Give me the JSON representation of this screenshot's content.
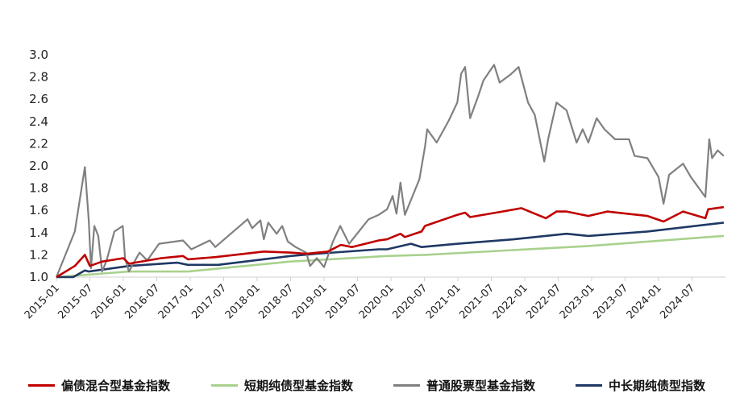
{
  "chart_data": {
    "type": "line",
    "title": "",
    "xlabel": "",
    "ylabel": "",
    "x_unit": "months since 2015-01",
    "xlim": [
      0,
      120
    ],
    "ylim": [
      1.0,
      3.0
    ],
    "grid": false,
    "legend_position": "bottom",
    "y_ticks": [
      "1.0",
      "1.2",
      "1.4",
      "1.6",
      "1.8",
      "2.0",
      "2.2",
      "2.4",
      "2.6",
      "2.8",
      "3.0"
    ],
    "x_ticks": [
      "2015-01",
      "2015-07",
      "2016-01",
      "2016-07",
      "2017-01",
      "2017-07",
      "2018-01",
      "2018-07",
      "2019-01",
      "2019-07",
      "2020-01",
      "2020-07",
      "2021-01",
      "2021-07",
      "2022-01",
      "2022-07",
      "2023-01",
      "2023-07",
      "2024-01",
      "2024-07"
    ],
    "series": [
      {
        "name": "偏债混合型基金指数",
        "color": "#C00000",
        "points": [
          [
            0,
            1.0
          ],
          [
            3.3,
            1.1
          ],
          [
            5.1,
            1.2
          ],
          [
            6,
            1.1
          ],
          [
            8.2,
            1.14
          ],
          [
            12,
            1.17
          ],
          [
            13,
            1.12
          ],
          [
            18.8,
            1.17
          ],
          [
            22.7,
            1.19
          ],
          [
            23.6,
            1.16
          ],
          [
            28.5,
            1.18
          ],
          [
            37.2,
            1.23
          ],
          [
            42,
            1.22
          ],
          [
            44.8,
            1.21
          ],
          [
            48.7,
            1.23
          ],
          [
            51,
            1.29
          ],
          [
            53,
            1.27
          ],
          [
            57.8,
            1.33
          ],
          [
            59.3,
            1.34
          ],
          [
            61.7,
            1.39
          ],
          [
            62.5,
            1.36
          ],
          [
            65.5,
            1.41
          ],
          [
            66.1,
            1.46
          ],
          [
            71.9,
            1.56
          ],
          [
            73.3,
            1.58
          ],
          [
            74.2,
            1.54
          ],
          [
            80,
            1.59
          ],
          [
            83.4,
            1.62
          ],
          [
            86.3,
            1.56
          ],
          [
            87.8,
            1.53
          ],
          [
            89.7,
            1.59
          ],
          [
            91.5,
            1.59
          ],
          [
            95.4,
            1.55
          ],
          [
            98.8,
            1.59
          ],
          [
            106,
            1.55
          ],
          [
            108.9,
            1.5
          ],
          [
            112.4,
            1.59
          ],
          [
            116.4,
            1.53
          ],
          [
            116.9,
            1.61
          ],
          [
            119.7,
            1.63
          ]
        ]
      },
      {
        "name": "短期纯债型基金指数",
        "color": "#A9D18E",
        "points": [
          [
            0,
            1.0
          ],
          [
            13,
            1.05
          ],
          [
            23.6,
            1.05
          ],
          [
            42,
            1.14
          ],
          [
            59.3,
            1.19
          ],
          [
            66.1,
            1.2
          ],
          [
            95.4,
            1.28
          ],
          [
            119.7,
            1.37
          ]
        ]
      },
      {
        "name": "普通股票型基金指数",
        "color": "#808080",
        "points": [
          [
            0,
            1.0
          ],
          [
            3.3,
            1.41
          ],
          [
            5.1,
            1.99
          ],
          [
            5.8,
            1.51
          ],
          [
            6.2,
            1.08
          ],
          [
            6.8,
            1.46
          ],
          [
            7.5,
            1.37
          ],
          [
            8.2,
            1.05
          ],
          [
            9,
            1.15
          ],
          [
            10.4,
            1.41
          ],
          [
            11.9,
            1.46
          ],
          [
            12.3,
            1.17
          ],
          [
            13,
            1.05
          ],
          [
            14.9,
            1.22
          ],
          [
            16.3,
            1.15
          ],
          [
            18.4,
            1.3
          ],
          [
            22.7,
            1.33
          ],
          [
            24.2,
            1.25
          ],
          [
            27.5,
            1.33
          ],
          [
            28.5,
            1.27
          ],
          [
            34.3,
            1.52
          ],
          [
            35.1,
            1.44
          ],
          [
            36.6,
            1.51
          ],
          [
            37.2,
            1.34
          ],
          [
            38,
            1.49
          ],
          [
            39.5,
            1.39
          ],
          [
            40.5,
            1.46
          ],
          [
            41.5,
            1.32
          ],
          [
            42.9,
            1.27
          ],
          [
            44.8,
            1.22
          ],
          [
            45.5,
            1.1
          ],
          [
            46.7,
            1.17
          ],
          [
            48,
            1.09
          ],
          [
            49.6,
            1.32
          ],
          [
            50.9,
            1.46
          ],
          [
            52.5,
            1.3
          ],
          [
            56,
            1.52
          ],
          [
            57.8,
            1.56
          ],
          [
            59.3,
            1.61
          ],
          [
            60.3,
            1.73
          ],
          [
            61,
            1.57
          ],
          [
            61.7,
            1.85
          ],
          [
            62.5,
            1.56
          ],
          [
            65.1,
            1.88
          ],
          [
            66.1,
            2.17
          ],
          [
            66.5,
            2.33
          ],
          [
            68.2,
            2.21
          ],
          [
            70.4,
            2.41
          ],
          [
            71.9,
            2.57
          ],
          [
            72.6,
            2.83
          ],
          [
            73.3,
            2.89
          ],
          [
            74.2,
            2.43
          ],
          [
            75.6,
            2.62
          ],
          [
            76.6,
            2.77
          ],
          [
            78.5,
            2.91
          ],
          [
            79.5,
            2.75
          ],
          [
            81.4,
            2.82
          ],
          [
            82.9,
            2.89
          ],
          [
            84.6,
            2.57
          ],
          [
            85.8,
            2.46
          ],
          [
            87.5,
            2.04
          ],
          [
            88.2,
            2.24
          ],
          [
            89.7,
            2.57
          ],
          [
            91.5,
            2.5
          ],
          [
            93.3,
            2.21
          ],
          [
            94.4,
            2.33
          ],
          [
            95.4,
            2.21
          ],
          [
            96.9,
            2.43
          ],
          [
            98.3,
            2.33
          ],
          [
            100.2,
            2.24
          ],
          [
            102.7,
            2.24
          ],
          [
            103.7,
            2.09
          ],
          [
            106,
            2.07
          ],
          [
            108,
            1.9
          ],
          [
            108.9,
            1.66
          ],
          [
            109.9,
            1.92
          ],
          [
            112.4,
            2.02
          ],
          [
            113.8,
            1.9
          ],
          [
            116.4,
            1.72
          ],
          [
            117.1,
            2.24
          ],
          [
            117.6,
            2.07
          ],
          [
            118.6,
            2.14
          ],
          [
            119.7,
            2.09
          ]
        ]
      },
      {
        "name": "中长期纯债型指数",
        "color": "#1F3864",
        "points": [
          [
            0,
            1.0
          ],
          [
            3,
            1.0
          ],
          [
            5.1,
            1.06
          ],
          [
            5.8,
            1.05
          ],
          [
            13,
            1.1
          ],
          [
            21.7,
            1.13
          ],
          [
            23.6,
            1.11
          ],
          [
            29,
            1.11
          ],
          [
            42,
            1.19
          ],
          [
            46.7,
            1.21
          ],
          [
            57.8,
            1.25
          ],
          [
            59.3,
            1.25
          ],
          [
            63.6,
            1.3
          ],
          [
            65.5,
            1.27
          ],
          [
            72,
            1.3
          ],
          [
            82,
            1.34
          ],
          [
            91.5,
            1.39
          ],
          [
            95.4,
            1.37
          ],
          [
            106,
            1.41
          ],
          [
            119.7,
            1.49
          ]
        ]
      }
    ]
  }
}
